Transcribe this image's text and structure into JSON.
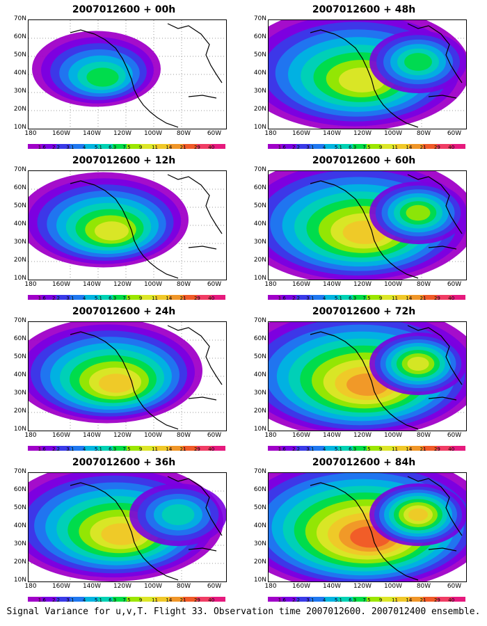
{
  "caption": "Signal Variance for u,v,T. Flight 33. Observation time 2007012600. 2007012400 ensemble.",
  "lat_labels": [
    "70N",
    "60N",
    "50N",
    "40N",
    "30N",
    "20N",
    "10N"
  ],
  "lon_labels": [
    "180",
    "160W",
    "140W",
    "120W",
    "100W",
    "80W",
    "60W"
  ],
  "colorbar": {
    "colors": [
      "#a000c8",
      "#7a00e0",
      "#3a3ae8",
      "#1f78f0",
      "#00b4e0",
      "#00d2b4",
      "#00dc46",
      "#9be600",
      "#dce628",
      "#f0c828",
      "#f09628",
      "#f05a28",
      "#f03c64",
      "#e6197d"
    ],
    "labels": [
      "1.6",
      "2.2",
      "3.1",
      "4",
      "5.1",
      "6.3",
      "7.5",
      "9",
      "11",
      "14",
      "21",
      "29",
      "40"
    ]
  },
  "panels": [
    {
      "title": "2007012600 + 00h",
      "col": 0,
      "row": 0,
      "intensity": 0.35,
      "spread": 0.35
    },
    {
      "title": "2007012600 + 12h",
      "col": 0,
      "row": 1,
      "intensity": 0.5,
      "spread": 0.55
    },
    {
      "title": "2007012600 + 24h",
      "col": 0,
      "row": 2,
      "intensity": 0.7,
      "spread": 0.65
    },
    {
      "title": "2007012600 + 36h",
      "col": 0,
      "row": 3,
      "intensity": 0.65,
      "spread": 0.8
    },
    {
      "title": "2007012600 + 48h",
      "col": 1,
      "row": 0,
      "intensity": 0.6,
      "spread": 0.85
    },
    {
      "title": "2007012600 + 60h",
      "col": 1,
      "row": 1,
      "intensity": 0.65,
      "spread": 0.9
    },
    {
      "title": "2007012600 + 72h",
      "col": 1,
      "row": 2,
      "intensity": 0.75,
      "spread": 0.95
    },
    {
      "title": "2007012600 + 84h",
      "col": 1,
      "row": 3,
      "intensity": 0.85,
      "spread": 1.0
    }
  ]
}
